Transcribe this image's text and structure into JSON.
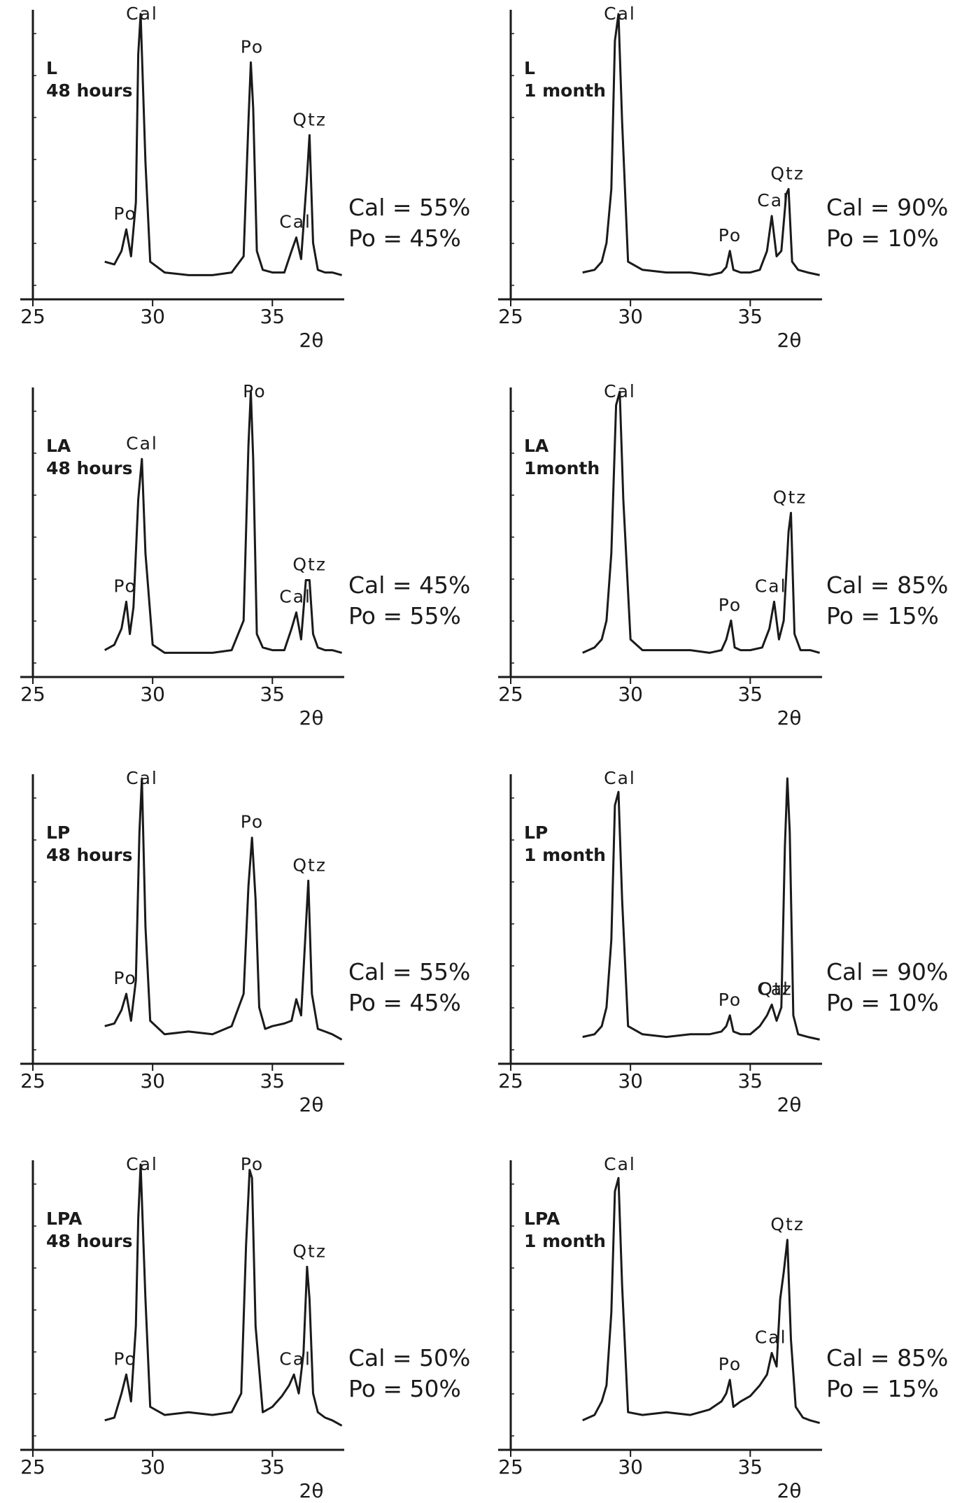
{
  "chart_data": [
    {
      "type": "line",
      "sample": "L",
      "duration": "48 hours",
      "xlabel": "2θ",
      "xlim": [
        25,
        38
      ],
      "xticks": [
        25,
        30,
        35
      ],
      "ylabel": "",
      "ticks_on_y": true,
      "series": [
        {
          "x": [
            28.0,
            28.4,
            28.7,
            28.9,
            29.1,
            29.3,
            29.4,
            29.5,
            29.7,
            29.9,
            30.5,
            31.5,
            32.5,
            33.3,
            33.8,
            34.0,
            34.1,
            34.2,
            34.35,
            34.6,
            35.0,
            35.5,
            35.8,
            36.0,
            36.2,
            36.45,
            36.55,
            36.7,
            36.9,
            37.2,
            37.5,
            37.9
          ],
          "y": [
            8,
            7,
            12,
            20,
            10,
            30,
            85,
            100,
            45,
            8,
            4,
            3,
            3,
            4,
            10,
            60,
            82,
            65,
            12,
            5,
            4,
            4,
            12,
            17,
            9,
            40,
            55,
            15,
            5,
            4,
            4,
            3
          ]
        }
      ],
      "annotations": [
        {
          "label": "Cal",
          "x": 29.5
        },
        {
          "label": "Po",
          "x": 34.1
        },
        {
          "label": "Qtz",
          "x": 36.5
        },
        {
          "label": "Po",
          "x": 28.8
        },
        {
          "label": "Cal",
          "x": 35.9
        }
      ],
      "composition": [
        "Cal = 55%",
        "Po = 45%"
      ]
    },
    {
      "type": "line",
      "sample": "L",
      "duration": "1 month",
      "xlabel": "2θ",
      "xlim": [
        25,
        38
      ],
      "xticks": [
        25,
        30,
        35
      ],
      "ylabel": "",
      "ticks_on_y": true,
      "series": [
        {
          "x": [
            28.0,
            28.5,
            28.8,
            29.0,
            29.2,
            29.35,
            29.5,
            29.65,
            29.9,
            30.5,
            31.5,
            32.5,
            33.3,
            33.8,
            34.0,
            34.15,
            34.3,
            34.6,
            35.0,
            35.4,
            35.7,
            35.9,
            36.1,
            36.3,
            36.5,
            36.6,
            36.75,
            37.0,
            37.4,
            37.9
          ],
          "y": [
            4,
            5,
            8,
            15,
            35,
            90,
            100,
            60,
            8,
            5,
            4,
            4,
            3,
            4,
            6,
            12,
            5,
            4,
            4,
            5,
            12,
            25,
            10,
            12,
            33,
            35,
            8,
            5,
            4,
            3
          ]
        }
      ],
      "annotations": [
        {
          "label": "Cal",
          "x": 29.5
        },
        {
          "label": "Po",
          "x": 34.1
        },
        {
          "label": "Cal",
          "x": 35.9
        },
        {
          "label": "Qtz",
          "x": 36.5
        }
      ],
      "composition": [
        "Cal = 90%",
        "Po = 10%"
      ]
    },
    {
      "type": "line",
      "sample": "LA",
      "duration": "48 hours",
      "xlabel": "2θ",
      "xlim": [
        25,
        38
      ],
      "xticks": [
        25,
        30,
        35
      ],
      "ylabel": "",
      "ticks_on_y": true,
      "series": [
        {
          "x": [
            28.0,
            28.4,
            28.7,
            28.9,
            29.05,
            29.2,
            29.4,
            29.55,
            29.7,
            30.0,
            30.5,
            31.5,
            32.5,
            33.3,
            33.8,
            34.0,
            34.1,
            34.2,
            34.35,
            34.6,
            35.0,
            35.5,
            35.8,
            36.0,
            36.2,
            36.4,
            36.55,
            36.7,
            36.9,
            37.2,
            37.5,
            37.9
          ],
          "y": [
            4,
            6,
            12,
            22,
            10,
            20,
            60,
            75,
            40,
            6,
            3,
            3,
            3,
            4,
            15,
            80,
            100,
            75,
            10,
            5,
            4,
            4,
            12,
            18,
            8,
            30,
            30,
            10,
            5,
            4,
            4,
            3
          ]
        }
      ],
      "annotations": [
        {
          "label": "Cal",
          "x": 29.5
        },
        {
          "label": "Po",
          "x": 34.2
        },
        {
          "label": "Po",
          "x": 28.8
        },
        {
          "label": "Qtz",
          "x": 36.5
        },
        {
          "label": "Cal",
          "x": 35.9
        }
      ],
      "composition": [
        "Cal = 45%",
        "Po = 55%"
      ]
    },
    {
      "type": "line",
      "sample": "LA",
      "duration": "1month",
      "xlabel": "2θ",
      "xlim": [
        25,
        38
      ],
      "xticks": [
        25,
        30,
        35
      ],
      "ylabel": "",
      "ticks_on_y": true,
      "series": [
        {
          "x": [
            28.0,
            28.5,
            28.8,
            29.0,
            29.2,
            29.4,
            29.55,
            29.7,
            30.0,
            30.5,
            31.5,
            32.5,
            33.3,
            33.8,
            34.0,
            34.2,
            34.35,
            34.6,
            35.0,
            35.5,
            35.8,
            36.0,
            36.2,
            36.4,
            36.6,
            36.7,
            36.85,
            37.1,
            37.5,
            37.9
          ],
          "y": [
            3,
            5,
            8,
            15,
            40,
            95,
            100,
            60,
            8,
            4,
            4,
            4,
            3,
            4,
            8,
            15,
            5,
            4,
            4,
            5,
            12,
            22,
            8,
            15,
            48,
            55,
            10,
            4,
            4,
            3
          ]
        }
      ],
      "annotations": [
        {
          "label": "Cal",
          "x": 29.5
        },
        {
          "label": "Qtz",
          "x": 36.6
        },
        {
          "label": "Cal",
          "x": 35.8
        },
        {
          "label": "Po",
          "x": 34.1
        }
      ],
      "composition": [
        "Cal = 85%",
        "Po = 15%"
      ]
    },
    {
      "type": "line",
      "sample": "LP",
      "duration": "48 hours",
      "xlabel": "2θ",
      "xlim": [
        25,
        38
      ],
      "xticks": [
        25,
        30,
        35
      ],
      "ylabel": "",
      "ticks_on_y": true,
      "series": [
        {
          "x": [
            28.0,
            28.4,
            28.7,
            28.9,
            29.1,
            29.3,
            29.45,
            29.55,
            29.7,
            29.9,
            30.5,
            31.5,
            32.5,
            33.3,
            33.8,
            34.0,
            34.15,
            34.3,
            34.45,
            34.7,
            35.0,
            35.5,
            35.8,
            36.0,
            36.2,
            36.4,
            36.5,
            36.65,
            36.9,
            37.2,
            37.5,
            37.9
          ],
          "y": [
            8,
            9,
            14,
            20,
            10,
            25,
            80,
            100,
            45,
            10,
            5,
            6,
            5,
            8,
            20,
            60,
            78,
            55,
            15,
            7,
            8,
            9,
            10,
            18,
            12,
            45,
            62,
            20,
            7,
            6,
            5,
            3
          ]
        }
      ],
      "annotations": [
        {
          "label": "Cal",
          "x": 29.5
        },
        {
          "label": "Po",
          "x": 34.1
        },
        {
          "label": "Qtz",
          "x": 36.5
        },
        {
          "label": "Po",
          "x": 28.8
        }
      ],
      "composition": [
        "Cal = 55%",
        "Po = 45%"
      ]
    },
    {
      "type": "line",
      "sample": "LP",
      "duration": "1 month",
      "xlabel": "2θ",
      "xlim": [
        25,
        38
      ],
      "xticks": [
        25,
        30,
        35
      ],
      "ylabel": "",
      "ticks_on_y": true,
      "series": [
        {
          "x": [
            28.0,
            28.5,
            28.8,
            29.0,
            29.2,
            29.35,
            29.5,
            29.65,
            29.9,
            30.5,
            31.5,
            32.5,
            33.3,
            33.8,
            34.0,
            34.15,
            34.3,
            34.6,
            35.0,
            35.4,
            35.7,
            35.9,
            36.1,
            36.3,
            36.45,
            36.55,
            36.65,
            36.8,
            37.0,
            37.4,
            37.9
          ],
          "y": [
            4,
            5,
            8,
            15,
            40,
            90,
            95,
            55,
            8,
            5,
            4,
            5,
            5,
            6,
            8,
            12,
            6,
            5,
            5,
            8,
            12,
            16,
            10,
            15,
            75,
            100,
            80,
            12,
            5,
            4,
            3
          ]
        }
      ],
      "annotations": [
        {
          "label": "Cal",
          "x": 29.5
        },
        {
          "label": "Qtz",
          "x": 36.0
        },
        {
          "label": "Cal",
          "x": 35.9
        },
        {
          "label": "Po",
          "x": 34.1
        }
      ],
      "composition": [
        "Cal = 90%",
        "Po = 10%"
      ]
    },
    {
      "type": "line",
      "sample": "LPA",
      "duration": "48 hours",
      "xlabel": "2θ",
      "xlim": [
        25,
        38
      ],
      "xticks": [
        25,
        30,
        35
      ],
      "ylabel": "",
      "ticks_on_y": true,
      "series": [
        {
          "x": [
            28.0,
            28.4,
            28.7,
            28.9,
            29.1,
            29.3,
            29.4,
            29.5,
            29.7,
            29.9,
            30.5,
            31.5,
            32.5,
            33.3,
            33.7,
            33.9,
            34.05,
            34.15,
            34.3,
            34.6,
            35.0,
            35.4,
            35.7,
            35.9,
            36.1,
            36.3,
            36.45,
            36.55,
            36.7,
            36.9,
            37.2,
            37.5,
            37.9
          ],
          "y": [
            5,
            6,
            15,
            22,
            12,
            40,
            80,
            100,
            50,
            10,
            7,
            8,
            7,
            8,
            15,
            70,
            98,
            95,
            40,
            8,
            10,
            14,
            18,
            22,
            15,
            30,
            62,
            50,
            15,
            8,
            6,
            5,
            3
          ]
        }
      ],
      "annotations": [
        {
          "label": "Cal",
          "x": 29.5
        },
        {
          "label": "Po",
          "x": 34.1
        },
        {
          "label": "Qtz",
          "x": 36.5
        },
        {
          "label": "Po",
          "x": 28.8
        },
        {
          "label": "Cal",
          "x": 35.9
        }
      ],
      "composition": [
        "Cal = 50%",
        "Po = 50%"
      ]
    },
    {
      "type": "line",
      "sample": "LPA",
      "duration": "1 month",
      "xlabel": "2θ",
      "xlim": [
        25,
        38
      ],
      "xticks": [
        25,
        30,
        35
      ],
      "ylabel": "",
      "ticks_on_y": true,
      "series": [
        {
          "x": [
            28.0,
            28.5,
            28.8,
            29.0,
            29.2,
            29.35,
            29.5,
            29.65,
            29.9,
            30.5,
            31.5,
            32.5,
            33.3,
            33.8,
            34.0,
            34.15,
            34.3,
            34.6,
            35.0,
            35.4,
            35.7,
            35.9,
            36.1,
            36.25,
            36.4,
            36.55,
            36.7,
            36.9,
            37.2,
            37.5,
            37.9
          ],
          "y": [
            5,
            7,
            12,
            18,
            45,
            90,
            95,
            55,
            8,
            7,
            8,
            7,
            9,
            12,
            15,
            20,
            10,
            12,
            14,
            18,
            22,
            30,
            25,
            50,
            60,
            72,
            35,
            10,
            6,
            5,
            4
          ]
        }
      ],
      "annotations": [
        {
          "label": "Cal",
          "x": 29.5
        },
        {
          "label": "Qtz",
          "x": 36.5
        },
        {
          "label": "Cal",
          "x": 35.8
        },
        {
          "label": "Po",
          "x": 34.1
        }
      ],
      "composition": [
        "Cal = 85%",
        "Po = 15%"
      ]
    }
  ]
}
